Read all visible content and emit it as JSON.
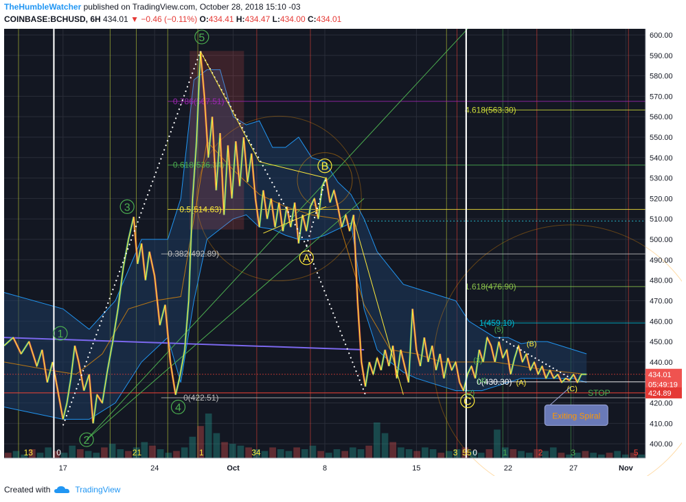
{
  "header": {
    "author": "TheHumbleWatcher",
    "published": "published on TradingView.com, October 28, 2018 15:10 -03"
  },
  "symbol": {
    "name": "COINBASE:BCHUSD, 6H",
    "last": "434.01",
    "change": "−0.46 (−0.11%)",
    "o_label": "O:",
    "o": "434.41",
    "h_label": "H:",
    "h": "434.47",
    "l_label": "L:",
    "l": "434.00",
    "c_label": "C:",
    "c": "434.01"
  },
  "footer": {
    "created": "Created with",
    "brand": "TradingView"
  },
  "colors": {
    "bg": "#131722",
    "panel": "#1e222d",
    "grid": "#2a2e39",
    "candle_up": "#26a69a",
    "candle_down": "#ef5350",
    "yellow": "#ffeb3b",
    "green": "#4caf50",
    "purple": "#9c27b0",
    "blue": "#7b68ee",
    "cyan": "#00bcd4",
    "red": "#f44336",
    "orange": "#ff9800"
  },
  "chart_data": {
    "type": "line",
    "ylim": [
      393,
      603
    ],
    "y_ticks": [
      400,
      410,
      420,
      430,
      440,
      450,
      460,
      470,
      480,
      490,
      500,
      510,
      520,
      530,
      540,
      550,
      560,
      570,
      580,
      590,
      600
    ],
    "y_tick_labels": [
      "400.00",
      "410.00",
      "420.00",
      "430.00",
      "440.00",
      "450.00",
      "460.00",
      "470.00",
      "480.00",
      "490.00",
      "500.00",
      "510.00",
      "520.00",
      "530.00",
      "540.00",
      "550.00",
      "560.00",
      "570.00",
      "580.00",
      "590.00",
      "600.00"
    ],
    "x_ticks": [
      {
        "label": "17",
        "x": 2.0
      },
      {
        "label": "24",
        "x": 9.0
      },
      {
        "label": "Oct",
        "x": 15.0
      },
      {
        "label": "8",
        "x": 22.0
      },
      {
        "label": "15",
        "x": 29.0
      },
      {
        "label": "22",
        "x": 36.0
      },
      {
        "label": "27",
        "x": 41.0
      },
      {
        "label": "Nov",
        "x": 45.0
      }
    ],
    "xlim": [
      -2.5,
      46.5
    ],
    "price_path": [
      [
        -2.5,
        448
      ],
      [
        -1.8,
        452
      ],
      [
        -1.2,
        444
      ],
      [
        -0.6,
        450
      ],
      [
        0,
        438
      ],
      [
        0.4,
        446
      ],
      [
        0.8,
        430
      ],
      [
        1.2,
        440
      ],
      [
        1.6,
        426
      ],
      [
        2.0,
        412
      ],
      [
        2.3,
        420
      ],
      [
        2.6,
        432
      ],
      [
        2.9,
        448
      ],
      [
        3.2,
        440
      ],
      [
        3.6,
        426
      ],
      [
        4.0,
        434
      ],
      [
        4.3,
        410
      ],
      [
        4.6,
        424
      ],
      [
        5.0,
        420
      ],
      [
        5.4,
        436
      ],
      [
        5.8,
        450
      ],
      [
        6.2,
        466
      ],
      [
        6.6,
        486
      ],
      [
        7.0,
        500
      ],
      [
        7.4,
        511
      ],
      [
        7.7,
        488
      ],
      [
        8.0,
        498
      ],
      [
        8.3,
        480
      ],
      [
        8.6,
        494
      ],
      [
        9.0,
        482
      ],
      [
        9.4,
        458
      ],
      [
        9.8,
        468
      ],
      [
        10.2,
        440
      ],
      [
        10.6,
        424
      ],
      [
        10.9,
        432
      ],
      [
        11.3,
        446
      ],
      [
        11.6,
        470
      ],
      [
        11.9,
        520
      ],
      [
        12.2,
        548
      ],
      [
        12.5,
        592
      ],
      [
        12.8,
        570
      ],
      [
        13.1,
        540
      ],
      [
        13.4,
        560
      ],
      [
        13.7,
        524
      ],
      [
        14.0,
        552
      ],
      [
        14.3,
        512
      ],
      [
        14.6,
        546
      ],
      [
        14.9,
        520
      ],
      [
        15.2,
        548
      ],
      [
        15.5,
        526
      ],
      [
        15.8,
        550
      ],
      [
        16.1,
        528
      ],
      [
        16.4,
        542
      ],
      [
        16.7,
        520
      ],
      [
        17.0,
        506
      ],
      [
        17.3,
        524
      ],
      [
        17.6,
        510
      ],
      [
        17.9,
        520
      ],
      [
        18.2,
        506
      ],
      [
        18.5,
        518
      ],
      [
        18.8,
        504
      ],
      [
        19.1,
        516
      ],
      [
        19.4,
        506
      ],
      [
        19.7,
        518
      ],
      [
        20.0,
        498
      ],
      [
        20.3,
        512
      ],
      [
        20.6,
        504
      ],
      [
        20.9,
        516
      ],
      [
        21.2,
        520
      ],
      [
        21.5,
        510
      ],
      [
        21.8,
        526
      ],
      [
        22.1,
        530
      ],
      [
        22.4,
        518
      ],
      [
        22.7,
        524
      ],
      [
        23.0,
        516
      ],
      [
        23.3,
        506
      ],
      [
        23.6,
        512
      ],
      [
        23.9,
        504
      ],
      [
        24.2,
        512
      ],
      [
        24.5,
        470
      ],
      [
        24.8,
        440
      ],
      [
        25.1,
        428
      ],
      [
        25.4,
        440
      ],
      [
        25.7,
        434
      ],
      [
        26.0,
        442
      ],
      [
        26.3,
        436
      ],
      [
        26.6,
        446
      ],
      [
        26.9,
        438
      ],
      [
        27.2,
        448
      ],
      [
        27.5,
        432
      ],
      [
        27.8,
        446
      ],
      [
        28.1,
        438
      ],
      [
        28.4,
        430
      ],
      [
        28.7,
        466
      ],
      [
        29.0,
        446
      ],
      [
        29.3,
        438
      ],
      [
        29.6,
        452
      ],
      [
        29.9,
        440
      ],
      [
        30.2,
        448
      ],
      [
        30.5,
        436
      ],
      [
        30.8,
        444
      ],
      [
        31.1,
        432
      ],
      [
        31.4,
        442
      ],
      [
        31.7,
        436
      ],
      [
        32.0,
        440
      ],
      [
        32.3,
        430
      ],
      [
        32.6,
        426
      ],
      [
        32.9,
        434
      ],
      [
        33.2,
        438
      ],
      [
        33.5,
        432
      ],
      [
        33.8,
        446
      ],
      [
        34.1,
        440
      ],
      [
        34.4,
        452
      ],
      [
        34.7,
        448
      ],
      [
        35.0,
        440
      ],
      [
        35.3,
        450
      ],
      [
        35.6,
        442
      ],
      [
        35.9,
        446
      ],
      [
        36.2,
        434
      ],
      [
        36.5,
        442
      ],
      [
        36.8,
        448
      ],
      [
        37.1,
        440
      ],
      [
        37.4,
        444
      ],
      [
        37.7,
        436
      ],
      [
        38.0,
        440
      ],
      [
        38.3,
        434
      ],
      [
        38.6,
        438
      ],
      [
        38.9,
        432
      ],
      [
        39.2,
        436
      ],
      [
        39.5,
        432
      ],
      [
        39.8,
        434
      ],
      [
        40.1,
        430
      ],
      [
        40.4,
        432
      ],
      [
        40.7,
        431
      ],
      [
        41.0,
        434
      ],
      [
        41.3,
        430
      ],
      [
        41.6,
        434
      ],
      [
        42.0,
        434
      ]
    ],
    "ichimoku_upper": [
      [
        -2.5,
        474
      ],
      [
        2,
        466
      ],
      [
        4,
        456
      ],
      [
        6,
        470
      ],
      [
        8,
        500
      ],
      [
        10,
        500
      ],
      [
        11,
        520
      ],
      [
        12,
        578
      ],
      [
        13,
        583
      ],
      [
        14,
        583
      ],
      [
        15,
        560
      ],
      [
        16,
        556
      ],
      [
        17,
        558
      ],
      [
        18,
        545
      ],
      [
        19,
        545
      ],
      [
        20,
        550
      ],
      [
        21,
        540
      ],
      [
        22,
        538
      ],
      [
        23,
        528
      ],
      [
        24,
        522
      ],
      [
        25,
        510
      ],
      [
        26,
        494
      ],
      [
        27,
        486
      ],
      [
        28,
        478
      ],
      [
        29,
        476
      ],
      [
        30,
        474
      ],
      [
        31,
        472
      ],
      [
        32,
        470
      ],
      [
        33,
        460
      ],
      [
        34,
        456
      ],
      [
        35,
        452
      ],
      [
        36,
        452
      ],
      [
        37,
        449
      ],
      [
        38,
        450
      ],
      [
        39,
        450
      ],
      [
        40,
        448
      ],
      [
        41,
        446
      ],
      [
        42,
        444
      ]
    ],
    "ichimoku_lower": [
      [
        -2.5,
        418
      ],
      [
        2,
        412
      ],
      [
        4,
        412
      ],
      [
        6,
        420
      ],
      [
        8,
        440
      ],
      [
        10,
        452
      ],
      [
        11,
        430
      ],
      [
        12,
        470
      ],
      [
        13,
        500
      ],
      [
        14,
        505
      ],
      [
        15,
        510
      ],
      [
        16,
        512
      ],
      [
        17,
        506
      ],
      [
        18,
        505
      ],
      [
        19,
        502
      ],
      [
        20,
        500
      ],
      [
        21,
        500
      ],
      [
        22,
        502
      ],
      [
        23,
        505
      ],
      [
        24,
        508
      ],
      [
        25,
        466
      ],
      [
        26,
        446
      ],
      [
        27,
        440
      ],
      [
        28,
        435
      ],
      [
        29,
        432
      ],
      [
        30,
        430
      ],
      [
        31,
        428
      ],
      [
        32,
        426
      ],
      [
        33,
        426
      ],
      [
        34,
        426
      ],
      [
        35,
        428
      ],
      [
        36,
        430
      ],
      [
        37,
        432
      ],
      [
        38,
        432
      ],
      [
        39,
        432
      ],
      [
        40,
        432
      ],
      [
        41,
        432
      ],
      [
        42,
        430
      ]
    ],
    "moving_average": [
      [
        -2.5,
        440
      ],
      [
        1,
        436
      ],
      [
        3,
        434
      ],
      [
        5,
        444
      ],
      [
        7,
        466
      ],
      [
        9,
        470
      ],
      [
        11,
        472
      ],
      [
        13,
        548
      ],
      [
        15,
        534
      ],
      [
        17,
        522
      ],
      [
        19,
        516
      ],
      [
        21,
        512
      ],
      [
        23,
        510
      ],
      [
        25,
        468
      ],
      [
        27,
        446
      ],
      [
        29,
        444
      ],
      [
        31,
        440
      ],
      [
        33,
        440
      ],
      [
        35,
        440
      ],
      [
        37,
        438
      ],
      [
        39,
        436
      ],
      [
        42,
        434
      ]
    ],
    "trendline_blue": [
      [
        -2.5,
        452
      ],
      [
        25,
        446
      ]
    ],
    "fib_levels": [
      {
        "label": "0.786(567.51)",
        "value": 567.51,
        "x_from": 10,
        "x_to": 46.5,
        "color": "#9c27b0",
        "label_x": 10.4
      },
      {
        "label": "0.618(536.34)",
        "value": 536.34,
        "x_from": 10,
        "x_to": 46.5,
        "color": "#4caf50",
        "label_x": 10.4
      },
      {
        "label": "0.5(514.63)",
        "value": 514.63,
        "x_from": 10,
        "x_to": 46.5,
        "color": "#ffeb3b",
        "label_x": 10.9
      },
      {
        "label": "0.382(492.89)",
        "value": 492.89,
        "x_from": 9.5,
        "x_to": 46.5,
        "color": "#bdbdbd",
        "label_x": 10.0
      },
      {
        "label": "0(422.51)",
        "value": 422.51,
        "x_from": 9.5,
        "x_to": 46.5,
        "color": "#bdbdbd",
        "label_x": 11.2
      }
    ],
    "ext_levels": [
      {
        "label": "4.618(563.30)",
        "value": 563.3,
        "x_from": 34,
        "x_to": 46.5,
        "color": "#cddc39",
        "label_x": 32.7
      },
      {
        "label": "1.618(476.90)",
        "value": 476.9,
        "x_from": 34,
        "x_to": 46.5,
        "color": "#8bc34a",
        "label_x": 32.7
      },
      {
        "label": "1(459.10)",
        "value": 459.1,
        "x_from": 34,
        "x_to": 46.5,
        "color": "#00bcd4",
        "label_x": 33.8
      },
      {
        "label": "0(430.30)",
        "value": 430.3,
        "x_from": 34,
        "x_to": 46.5,
        "color": "#ffffff",
        "label_x": 33.6
      }
    ],
    "wave_labels": [
      {
        "text": "1",
        "x": 1.8,
        "y": 454,
        "color": "#4caf50"
      },
      {
        "text": "2",
        "x": 3.8,
        "y": 402,
        "color": "#4caf50"
      },
      {
        "text": "3",
        "x": 6.9,
        "y": 516,
        "color": "#4caf50"
      },
      {
        "text": "4",
        "x": 10.8,
        "y": 418,
        "color": "#4caf50"
      },
      {
        "text": "5",
        "x": 12.6,
        "y": 599,
        "color": "#4caf50"
      },
      {
        "text": "A",
        "x": 20.6,
        "y": 491,
        "color": "#ffeb3b"
      },
      {
        "text": "B",
        "x": 22.0,
        "y": 536,
        "color": "#ffeb3b"
      },
      {
        "text": "C",
        "x": 32.9,
        "y": 421,
        "color": "#ffeb3b"
      }
    ],
    "small_wave_labels": [
      {
        "text": "(5)",
        "x": 35.3,
        "y": 456,
        "color": "#4caf50"
      },
      {
        "text": "(3)",
        "x": 33.7,
        "y": 441,
        "color": "#4caf50"
      },
      {
        "text": "(4)",
        "x": 34.0,
        "y": 431,
        "color": "#4caf50"
      },
      {
        "text": "(2)",
        "x": 33.1,
        "y": 425,
        "color": "#4caf50"
      },
      {
        "text": "(B)",
        "x": 37.8,
        "y": 449,
        "color": "#ffeb3b"
      },
      {
        "text": "(A)",
        "x": 37.0,
        "y": 430,
        "color": "#ffeb3b"
      },
      {
        "text": "(C)",
        "x": 40.9,
        "y": 427,
        "color": "#ffeb3b"
      }
    ],
    "time_counts": [
      {
        "text": "13",
        "x": -1.0
      },
      {
        "text": "0",
        "x": 1.5
      },
      {
        "text": "21",
        "x": 7.3
      },
      {
        "text": "1",
        "x": 12.4
      },
      {
        "text": "34",
        "x": 16.4
      },
      {
        "text": "3",
        "x": 31.8
      },
      {
        "text": "55",
        "x": 32.5
      },
      {
        "text": "0",
        "x": 33.3
      },
      {
        "text": "1",
        "x": 35.6
      },
      {
        "text": "2",
        "x": 38.3
      },
      {
        "text": "3",
        "x": 40.8
      },
      {
        "text": "5",
        "x": 45.6
      }
    ],
    "vertical_white": [
      1.3,
      32.8
    ],
    "price_tags": [
      {
        "label": "434.01",
        "value": 434.01,
        "color": "#ef5350"
      },
      {
        "label": "05:49:19",
        "value": 429.0,
        "color": "#ef5350"
      },
      {
        "label": "424.89",
        "value": 424.89,
        "color": "#e53935"
      }
    ],
    "stop_label": "STOP",
    "stop_value": 424.89,
    "annotation": "Exiting Spiral",
    "volume": [
      3,
      4,
      2,
      5,
      3,
      6,
      4,
      3,
      7,
      5,
      4,
      3,
      6,
      8,
      5,
      4,
      6,
      9,
      7,
      5,
      3,
      4,
      6,
      12,
      18,
      25,
      14,
      9,
      8,
      7,
      6,
      5,
      4,
      6,
      5,
      4,
      6,
      5,
      7,
      4,
      3,
      5,
      4,
      6,
      5,
      7,
      20,
      14,
      9,
      6,
      5,
      4,
      6,
      5,
      3,
      4,
      5,
      6,
      4,
      3,
      5,
      16,
      6,
      5,
      4,
      3,
      5,
      4,
      6,
      3,
      2,
      3,
      4,
      3,
      2,
      3,
      4,
      2,
      3,
      2
    ]
  }
}
